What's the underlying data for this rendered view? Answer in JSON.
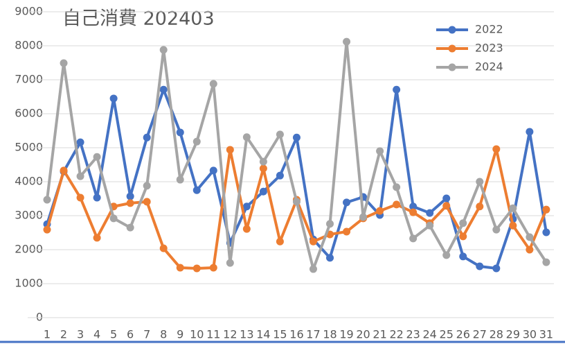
{
  "chart_data": {
    "type": "line",
    "title": "自己消費 202403",
    "categories": [
      "1",
      "2",
      "3",
      "4",
      "5",
      "6",
      "7",
      "8",
      "9",
      "10",
      "11",
      "12",
      "13",
      "14",
      "15",
      "16",
      "17",
      "18",
      "19",
      "20",
      "21",
      "22",
      "23",
      "24",
      "25",
      "26",
      "27",
      "28",
      "29",
      "30",
      "31"
    ],
    "series": [
      {
        "name": "2022",
        "color": "#4472c4",
        "values": [
          2750,
          4300,
          5160,
          3530,
          6450,
          3570,
          5300,
          6710,
          5450,
          3750,
          4330,
          2200,
          3270,
          3710,
          4180,
          5300,
          2300,
          1760,
          3390,
          3550,
          3020,
          6710,
          3270,
          3080,
          3510,
          1800,
          1510,
          1450,
          2900,
          5470,
          2510
        ]
      },
      {
        "name": "2023",
        "color": "#ed7d31",
        "values": [
          2590,
          4330,
          3530,
          2350,
          3270,
          3370,
          3410,
          2040,
          1470,
          1450,
          1470,
          4940,
          2610,
          4390,
          2240,
          3470,
          2240,
          2450,
          2530,
          2920,
          3140,
          3330,
          3100,
          2780,
          3290,
          2390,
          3270,
          4960,
          2710,
          2000,
          3180
        ]
      },
      {
        "name": "2024",
        "color": "#a5a5a5",
        "values": [
          3470,
          7490,
          4160,
          4730,
          2920,
          2650,
          3880,
          7880,
          4060,
          5180,
          6880,
          1610,
          5310,
          4590,
          5390,
          3410,
          1430,
          2760,
          8120,
          2960,
          4900,
          3840,
          2330,
          2710,
          1840,
          2780,
          4000,
          2590,
          3220,
          2370,
          1630
        ]
      }
    ],
    "ylim": [
      0,
      9000
    ],
    "yticks": [
      0,
      1000,
      2000,
      3000,
      4000,
      5000,
      6000,
      7000,
      8000,
      9000
    ],
    "grid": true,
    "legend": "top-right"
  }
}
